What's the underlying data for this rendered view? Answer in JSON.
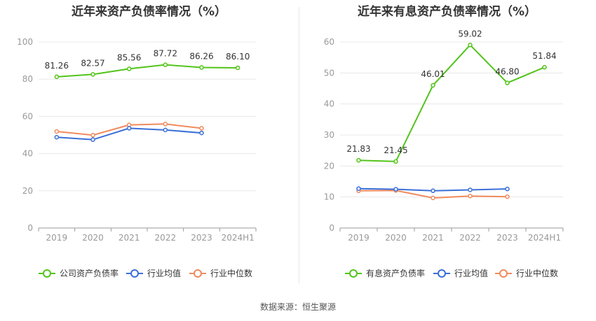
{
  "source_label": "数据来源：恒生聚源",
  "chart_data": [
    {
      "type": "line",
      "title": "近年来资产负债率情况（%）",
      "categories": [
        "2019",
        "2020",
        "2021",
        "2022",
        "2023",
        "2024H1"
      ],
      "ylim": [
        0,
        100
      ],
      "yticks": [
        0,
        20,
        40,
        60,
        80,
        100
      ],
      "grid": true,
      "legend_position": "bottom",
      "series": [
        {
          "name": "公司资产负债率",
          "color": "#52c41a",
          "values": [
            81.26,
            82.57,
            85.56,
            87.72,
            86.26,
            86.1
          ],
          "labels": true
        },
        {
          "name": "行业均值",
          "color": "#3a6fd8",
          "values": [
            48.8,
            47.5,
            53.6,
            52.7,
            51.1,
            null
          ],
          "labels": false
        },
        {
          "name": "行业中位数",
          "color": "#f08a5d",
          "values": [
            51.9,
            49.9,
            55.4,
            55.9,
            53.6,
            null
          ],
          "labels": false
        }
      ]
    },
    {
      "type": "line",
      "title": "近年来有息资产负债率情况（%）",
      "categories": [
        "2019",
        "2020",
        "2021",
        "2022",
        "2023",
        "2024H1"
      ],
      "ylim": [
        0,
        60
      ],
      "yticks": [
        0,
        10,
        20,
        30,
        40,
        50,
        60
      ],
      "grid": true,
      "legend_position": "bottom",
      "series": [
        {
          "name": "有息资产负债率",
          "color": "#52c41a",
          "values": [
            21.83,
            21.45,
            46.01,
            59.02,
            46.8,
            51.84
          ],
          "labels": true
        },
        {
          "name": "行业均值",
          "color": "#3a6fd8",
          "values": [
            12.7,
            12.5,
            12.0,
            12.3,
            12.6,
            null
          ],
          "labels": false
        },
        {
          "name": "行业中位数",
          "color": "#f08a5d",
          "values": [
            12.0,
            12.1,
            9.7,
            10.3,
            10.1,
            null
          ],
          "labels": false
        }
      ]
    }
  ]
}
